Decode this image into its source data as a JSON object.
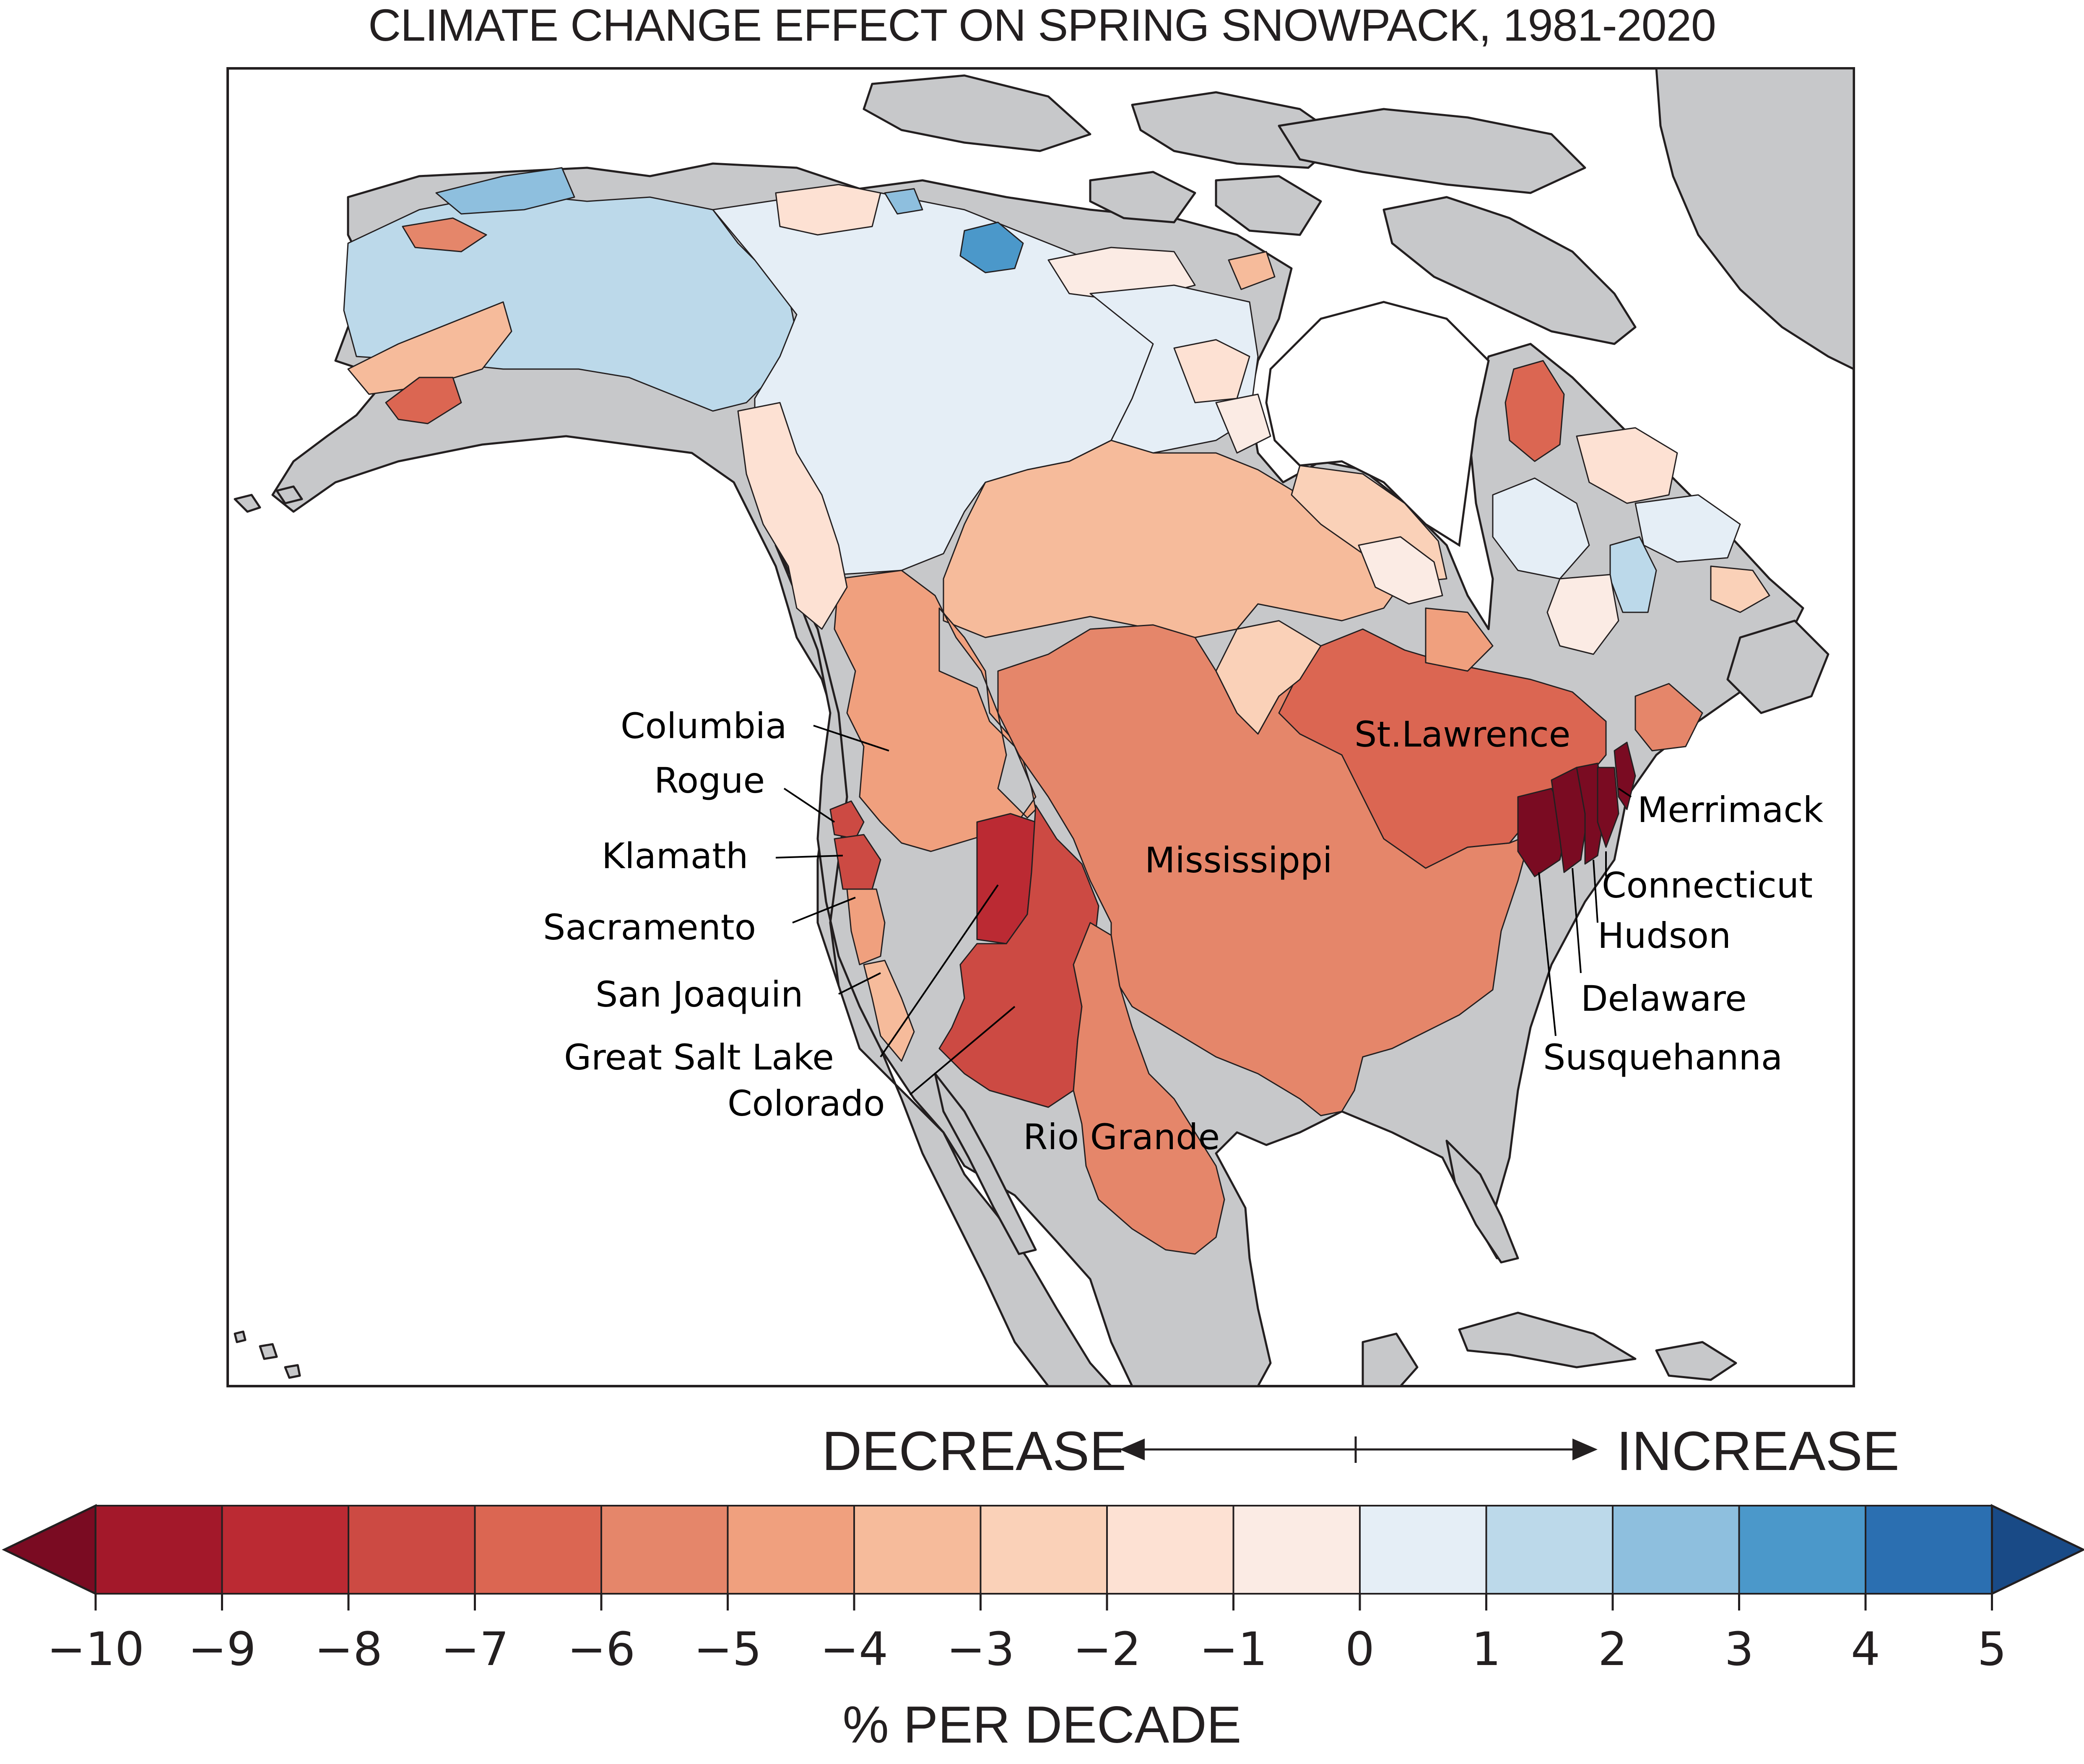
{
  "title": "CLIMATE CHANGE EFFECT ON SPRING SNOWPACK, 1981-2020",
  "basin_labels": {
    "columbia": "Columbia",
    "rogue": "Rogue",
    "klamath": "Klamath",
    "sacramento": "Sacramento",
    "san_joaquin": "San Joaquin",
    "great_salt_lake": "Great Salt Lake",
    "colorado": "Colorado",
    "rio_grande": "Rio Grande",
    "mississippi": "Mississippi",
    "st_lawrence": "St.Lawrence",
    "merrimack": "Merrimack",
    "connecticut": "Connecticut",
    "hudson": "Hudson",
    "delaware": "Delaware",
    "susquehanna": "Susquehanna"
  },
  "legend": {
    "decrease_label": "DECREASE",
    "increase_label": "INCREASE",
    "unit_label": "% PER DECADE",
    "ticks": [
      "−10",
      "−9",
      "−8",
      "−7",
      "−6",
      "−5",
      "−4",
      "−3",
      "−2",
      "−1",
      "0",
      "1",
      "2",
      "3",
      "4",
      "5"
    ],
    "colors": [
      "#a3182a",
      "#bb2a33",
      "#cc4a43",
      "#db6652",
      "#e5866a",
      "#f0a07e",
      "#f6bb9b",
      "#fad1b8",
      "#fde1d3",
      "#fbebe4",
      "#e5eef6",
      "#bcd9ea",
      "#8ebfde",
      "#4b98ca",
      "#2b6fb1"
    ],
    "low_extend_color": "#7a0b22",
    "high_extend_color": "#194a86"
  },
  "colors": {
    "land": "#c7c8ca",
    "ocean": "#ffffff",
    "outline": "#231f20"
  }
}
